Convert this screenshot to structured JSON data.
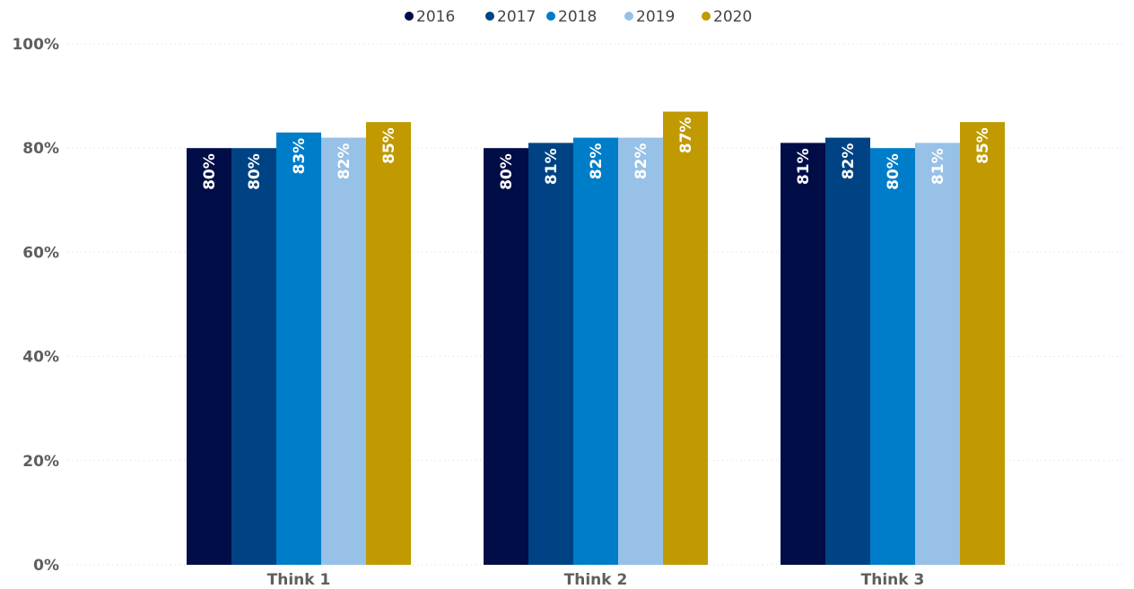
{
  "chart_data": {
    "type": "bar",
    "title": "",
    "xlabel": "",
    "ylabel": "",
    "categories": [
      "Think 1",
      "Think 2",
      "Think 3"
    ],
    "series": [
      {
        "name": "2016",
        "color": "#000D47",
        "values": [
          0.8,
          0.8,
          0.81
        ],
        "labels": [
          "80%",
          "80%",
          "81%"
        ]
      },
      {
        "name": "2017",
        "color": "#004384",
        "values": [
          0.8,
          0.81,
          0.82
        ],
        "labels": [
          "80%",
          "81%",
          "82%"
        ]
      },
      {
        "name": "2018",
        "color": "#007DC8",
        "values": [
          0.83,
          0.82,
          0.8
        ],
        "labels": [
          "83%",
          "82%",
          "80%"
        ]
      },
      {
        "name": "2019",
        "color": "#97C1E7",
        "values": [
          0.82,
          0.82,
          0.81
        ],
        "labels": [
          "82%",
          "82%",
          "81%"
        ]
      },
      {
        "name": "2020",
        "color": "#C09A00",
        "values": [
          0.85,
          0.87,
          0.85
        ],
        "labels": [
          "85%",
          "87%",
          "85%"
        ]
      }
    ],
    "ylim": [
      0,
      1
    ],
    "yticks": [
      0,
      0.2,
      0.4,
      0.6,
      0.8,
      1.0
    ],
    "ytick_labels": [
      "0%",
      "20%",
      "40%",
      "60%",
      "80%",
      "100%"
    ],
    "grid": true,
    "legend_position": "top-center",
    "data_labels": "inside-end-rotated"
  }
}
